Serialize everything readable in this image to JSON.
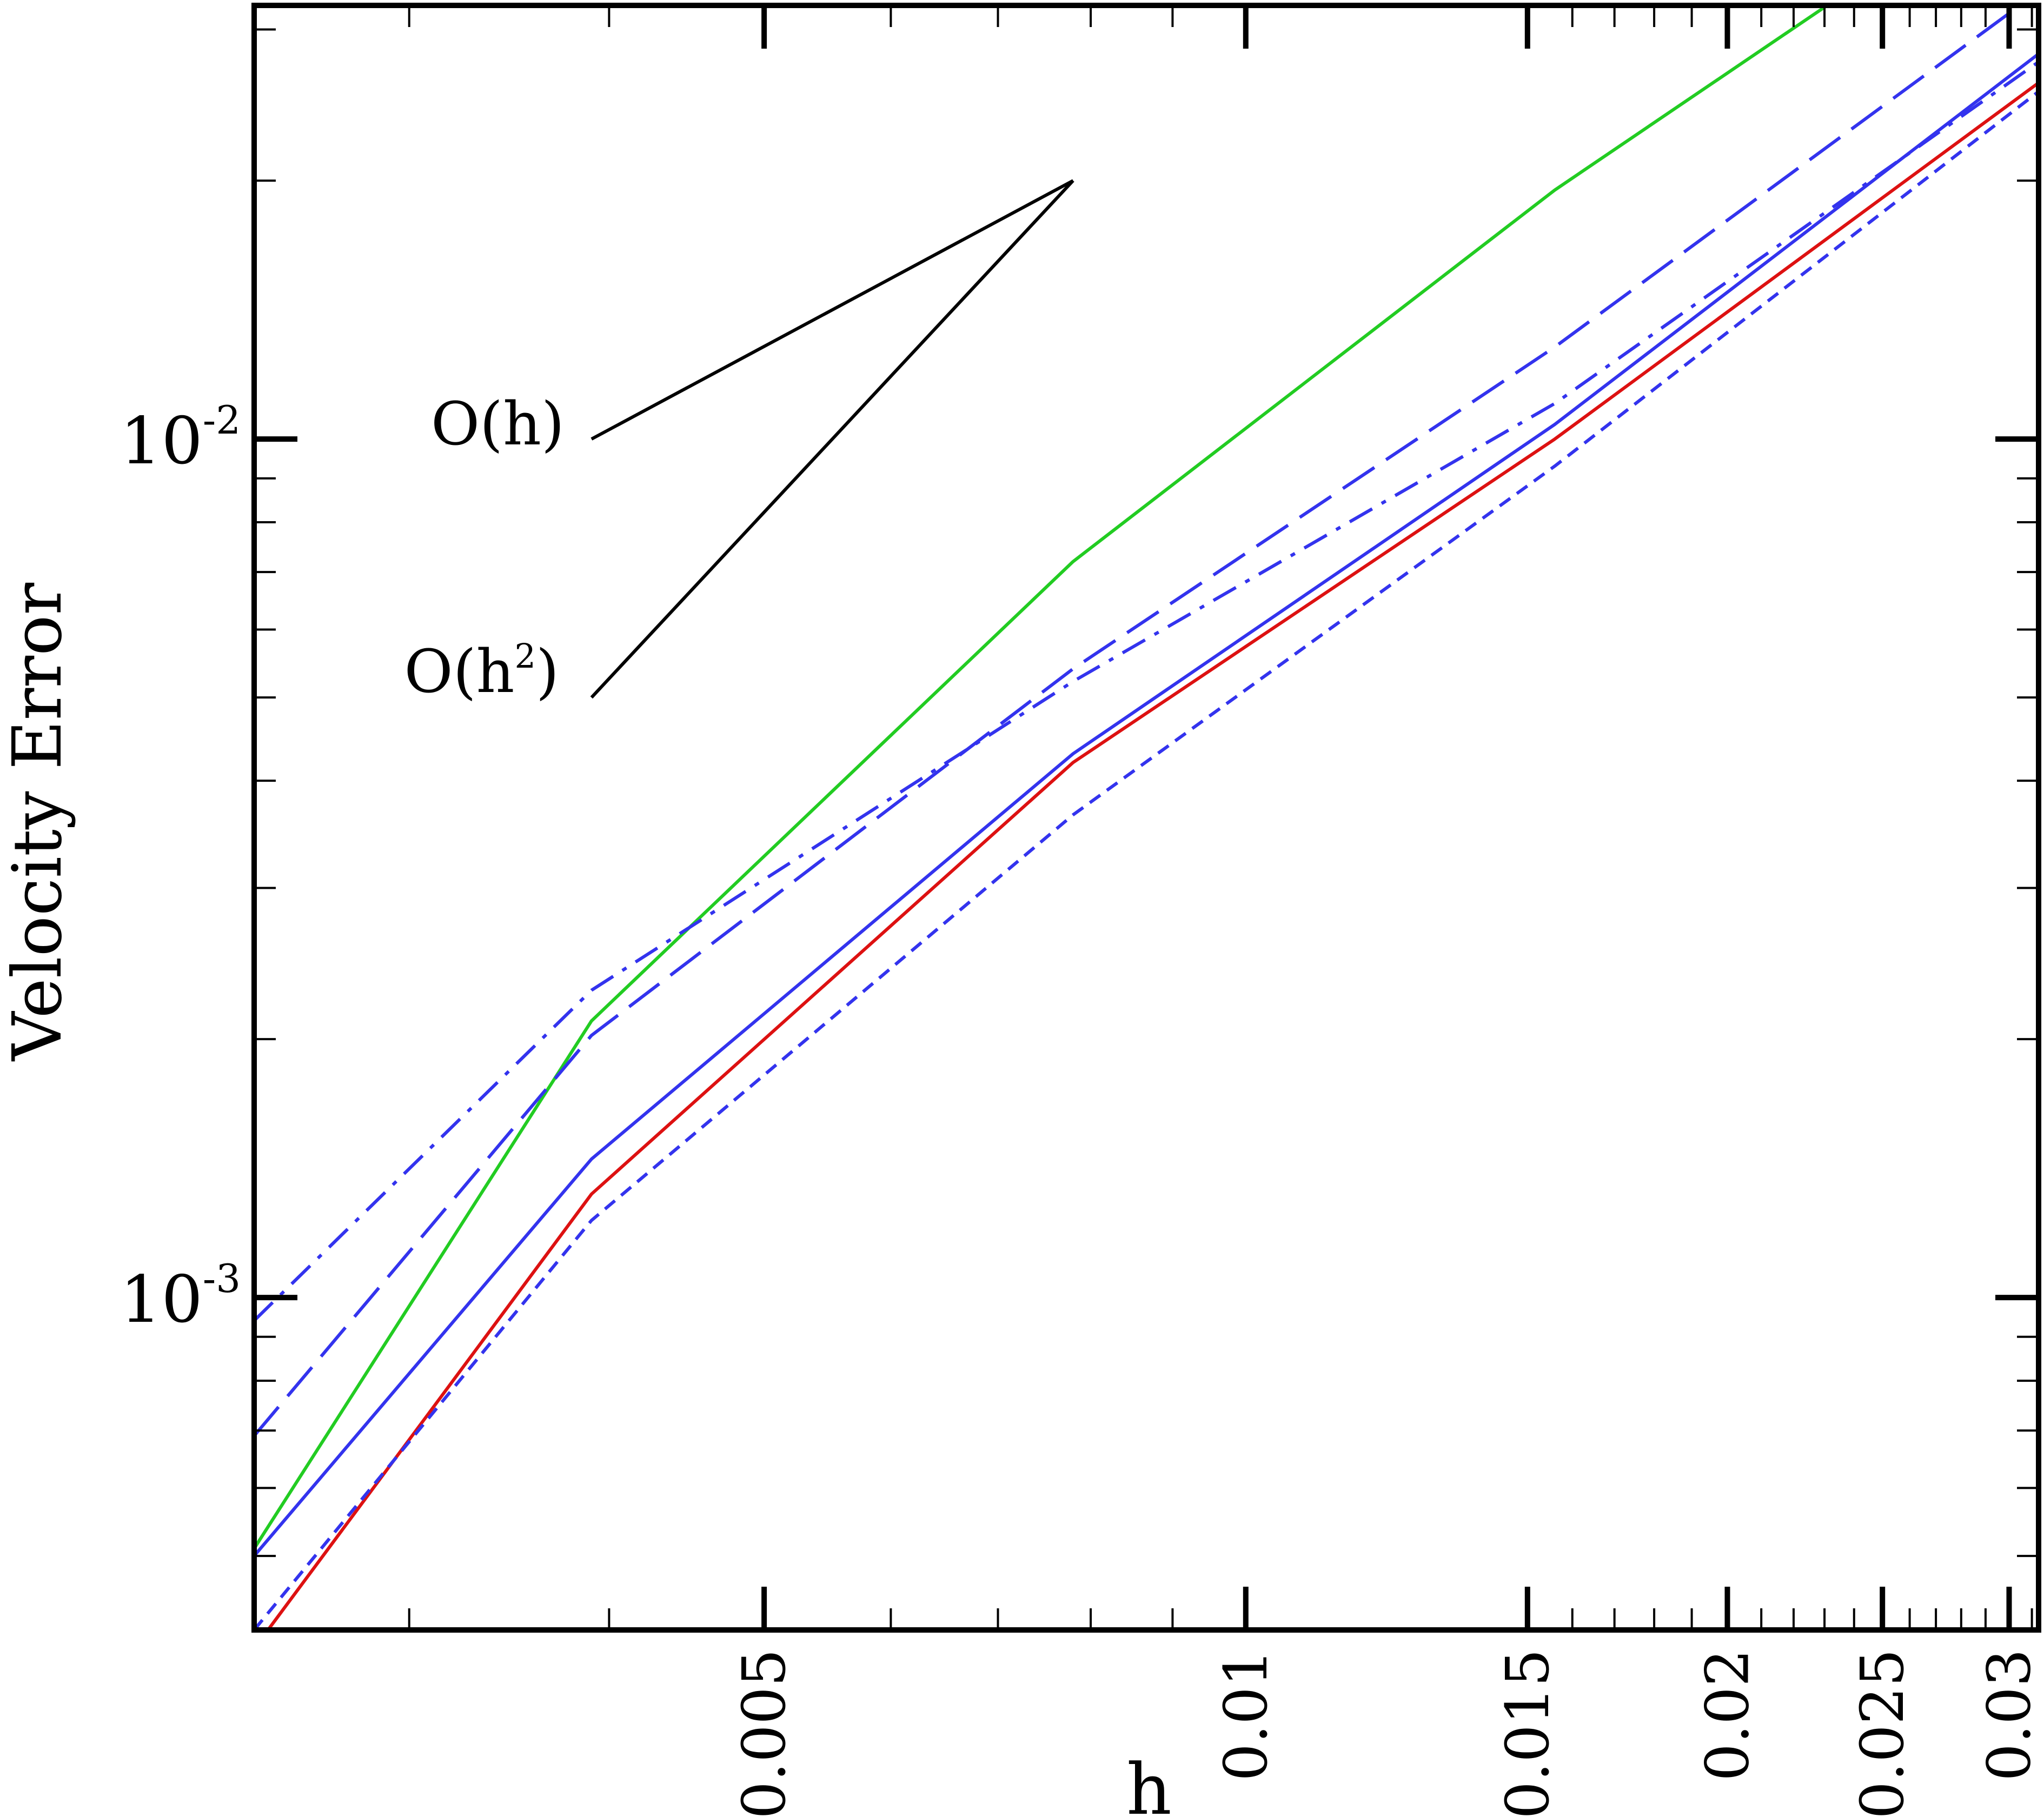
{
  "chart_data": {
    "type": "line",
    "title": "",
    "xlabel": "h",
    "ylabel": "Velocity Error",
    "xscale": "log",
    "yscale": "log",
    "xlim": [
      0.0024,
      0.0313
    ],
    "ylim": [
      0.00041,
      0.032
    ],
    "grid": false,
    "legend": "none",
    "x_ticks": [
      {
        "value": 0.005,
        "label": "0.005"
      },
      {
        "value": 0.01,
        "label": "0.01"
      },
      {
        "value": 0.015,
        "label": "0.015"
      },
      {
        "value": 0.02,
        "label": "0.02"
      },
      {
        "value": 0.025,
        "label": "0.025"
      },
      {
        "value": 0.03,
        "label": "0.03"
      }
    ],
    "y_ticks": [
      {
        "value": 0.001,
        "base": "10",
        "exp": "-3"
      },
      {
        "value": 0.01,
        "base": "10",
        "exp": "-2"
      }
    ],
    "series": [
      {
        "color": "#22cc22",
        "style": "solid",
        "x": [
          0.0024,
          0.0039,
          0.0078,
          0.0156,
          0.0313
        ],
        "y": [
          0.00051,
          0.0021,
          0.0072,
          0.0195,
          0.047
        ]
      },
      {
        "color": "#3333ee",
        "style": "dashed",
        "x": [
          0.0024,
          0.0039,
          0.0078,
          0.0156,
          0.0313
        ],
        "y": [
          0.00069,
          0.00202,
          0.0054,
          0.0128,
          0.0332
        ]
      },
      {
        "color": "#3333ee",
        "style": "dashdot",
        "x": [
          0.0024,
          0.0039,
          0.0078,
          0.0156,
          0.0313
        ],
        "y": [
          0.00094,
          0.00228,
          0.00522,
          0.011,
          0.0275
        ]
      },
      {
        "color": "#3333ee",
        "style": "solid",
        "x": [
          0.0024,
          0.0039,
          0.0078,
          0.0156,
          0.0313
        ],
        "y": [
          0.0005,
          0.00145,
          0.0043,
          0.0104,
          0.0281
        ]
      },
      {
        "color": "#dd1111",
        "style": "solid",
        "x": [
          0.0024,
          0.0039,
          0.0078,
          0.0156,
          0.0313
        ],
        "y": [
          0.00039,
          0.00132,
          0.0042,
          0.01,
          0.026
        ]
      },
      {
        "color": "#3333ee",
        "style": "dotted",
        "x": [
          0.0024,
          0.0039,
          0.0078,
          0.0156,
          0.0313
        ],
        "y": [
          0.00041,
          0.00123,
          0.00365,
          0.0093,
          0.0254
        ]
      }
    ],
    "annotations": {
      "order_h": {
        "label": "O(h)",
        "from": [
          0.0039,
          0.01
        ],
        "to": [
          0.0078,
          0.02
        ]
      },
      "order_h2": {
        "label_base": "O(h",
        "label_sup": "2",
        "label_close": ")",
        "from": [
          0.0039,
          0.005
        ],
        "to": [
          0.0078,
          0.02
        ]
      }
    }
  }
}
